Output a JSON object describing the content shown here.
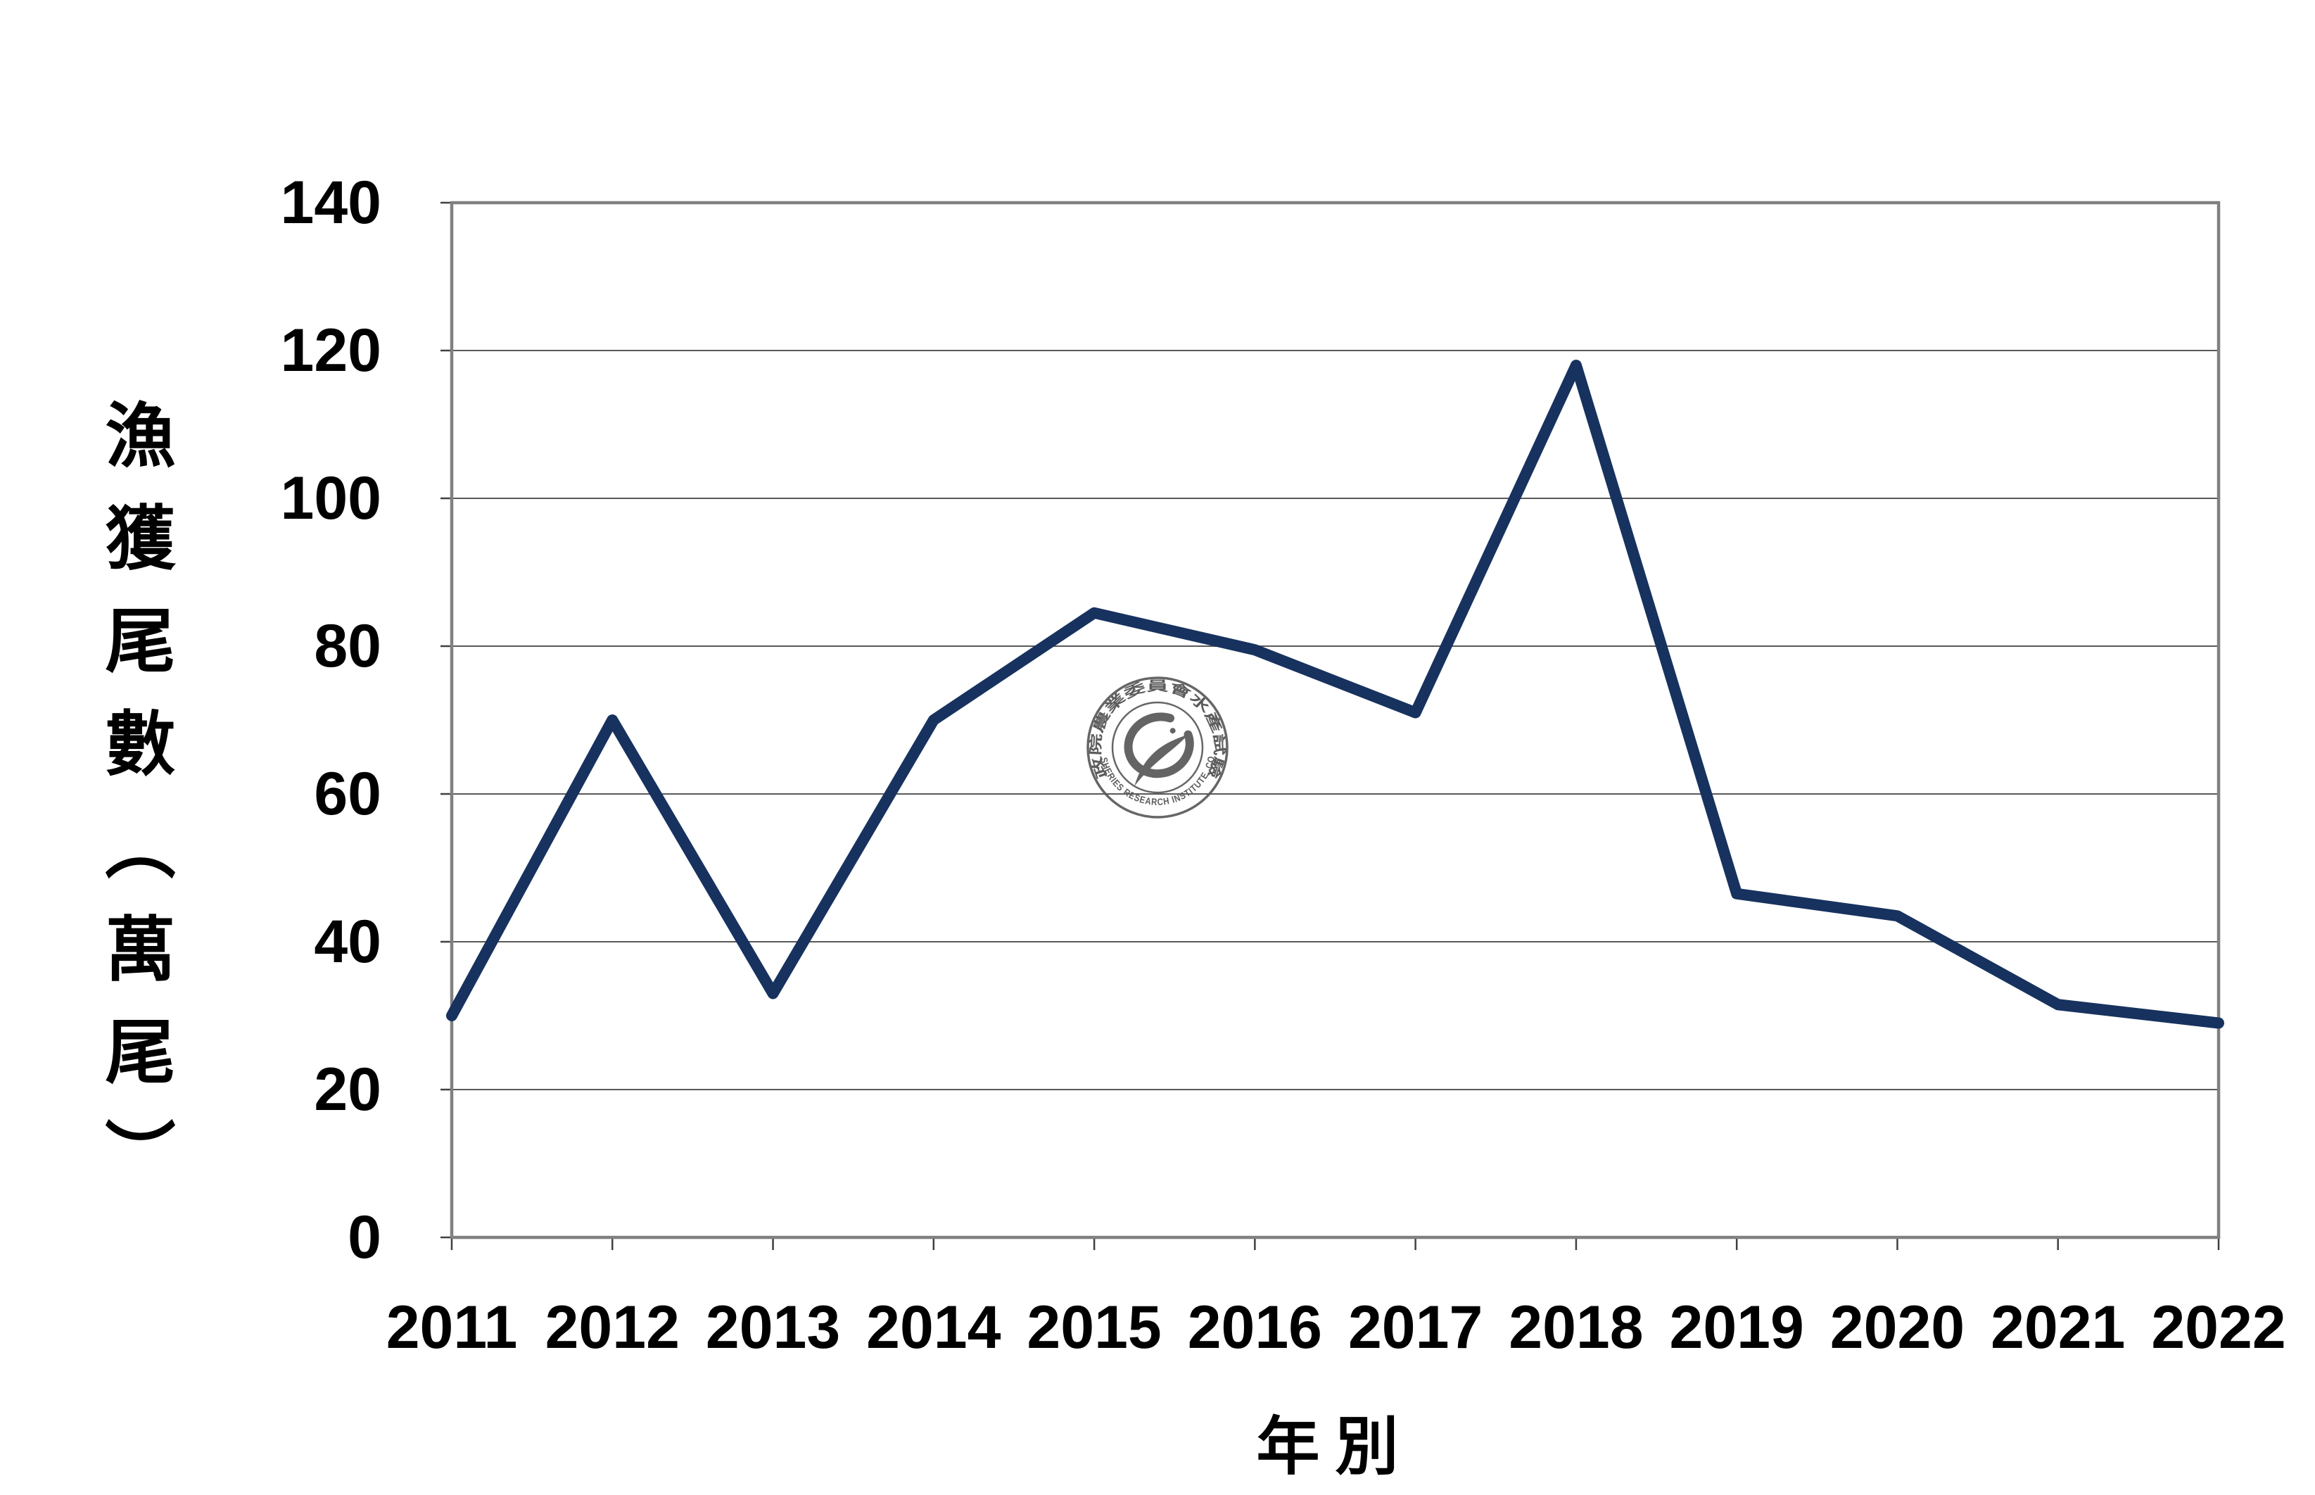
{
  "page": {
    "background": "#ffffff"
  },
  "chart_data": {
    "type": "line",
    "categories": [
      "2011",
      "2012",
      "2013",
      "2014",
      "2015",
      "2016",
      "2017",
      "2018",
      "2019",
      "2020",
      "2021",
      "2022"
    ],
    "values": [
      30,
      70,
      33,
      70,
      84.5,
      79.5,
      71,
      118,
      46.5,
      43.5,
      31.5,
      29
    ],
    "title": "",
    "xlabel": "年別",
    "ylabel": "漁獲尾數（萬尾）",
    "ylim": [
      0,
      140
    ],
    "ytick_step": 20,
    "yticks": [
      0,
      20,
      40,
      60,
      80,
      100,
      120,
      140
    ],
    "grid": true,
    "legend": "none",
    "line_color": "#17325E",
    "axis_color": "#808080",
    "gridline_color": "#595959",
    "tick_color": "#404040",
    "text_color": "#000000"
  },
  "watermark": {
    "top_text": "行政院農業委員會水產試驗所",
    "bottom_text": "FISHERIES RESEARCH INSTITUTE, COA",
    "color": "#4F4F4F"
  }
}
